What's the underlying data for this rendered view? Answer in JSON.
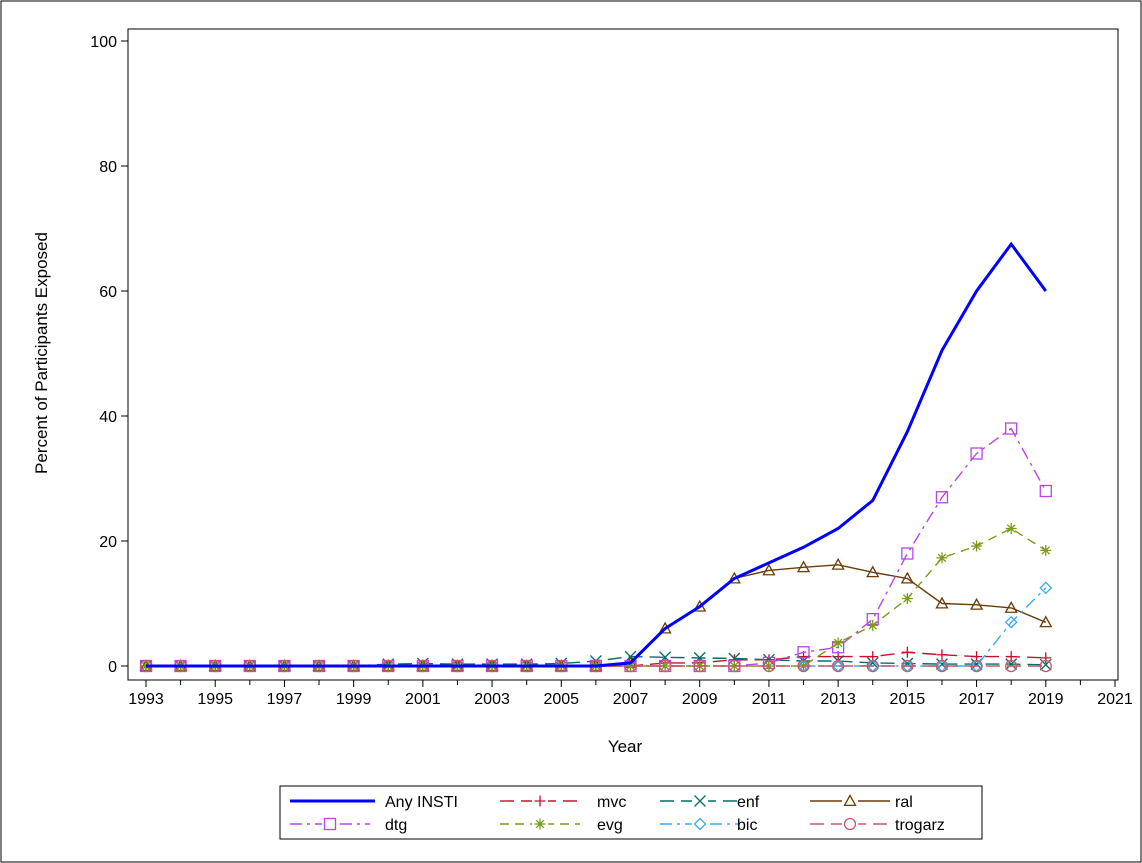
{
  "chart_data": {
    "type": "line",
    "xlabel": "Year",
    "ylabel": "Percent of Participants Exposed",
    "xlim": [
      1993,
      2021
    ],
    "ylim": [
      0,
      100
    ],
    "x_ticks": [
      1993,
      1995,
      1997,
      1999,
      2001,
      2003,
      2005,
      2007,
      2009,
      2011,
      2013,
      2015,
      2017,
      2019,
      2021
    ],
    "y_ticks": [
      0,
      20,
      40,
      60,
      80,
      100
    ],
    "x": [
      1993,
      1994,
      1995,
      1996,
      1997,
      1998,
      1999,
      2000,
      2001,
      2002,
      2003,
      2004,
      2005,
      2006,
      2007,
      2008,
      2009,
      2010,
      2011,
      2012,
      2013,
      2014,
      2015,
      2016,
      2017,
      2018,
      2019
    ],
    "grid": false,
    "legend_position": "bottom",
    "series": [
      {
        "name": "Any INSTI",
        "color": "#0000ff",
        "dash": "solid",
        "marker": "none",
        "values": [
          0,
          0,
          0,
          0,
          0,
          0,
          0,
          0,
          0,
          0,
          0,
          0,
          0,
          0,
          0.5,
          6,
          9.5,
          14,
          16.5,
          19,
          22,
          26.5,
          37.5,
          50.5,
          60,
          67.5,
          60
        ]
      },
      {
        "name": "mvc",
        "color": "#c8102e",
        "dash": "long-dash",
        "marker": "plus",
        "values": [
          0,
          0,
          0,
          0,
          0,
          0,
          0,
          0,
          0,
          0,
          0,
          0,
          0,
          0,
          0,
          0.5,
          0.5,
          1,
          1,
          1.5,
          1.5,
          1.5,
          2.2,
          1.8,
          1.5,
          1.5,
          1.3
        ]
      },
      {
        "name": "enf",
        "color": "#00706b",
        "dash": "long-dash",
        "marker": "x",
        "values": [
          0,
          0,
          0,
          0,
          0,
          0,
          0,
          0.3,
          0.4,
          0.3,
          0.3,
          0.3,
          0.4,
          0.8,
          1.5,
          1.4,
          1.3,
          1.2,
          1,
          0.8,
          0.8,
          0.5,
          0.4,
          0.3,
          0.3,
          0.3,
          0.2
        ]
      },
      {
        "name": "ral",
        "color": "#6b3d0a",
        "dash": "solid",
        "marker": "triangle",
        "values": [
          0,
          0,
          0,
          0,
          0,
          0,
          0,
          0,
          0,
          0,
          0,
          0,
          0,
          0,
          0.5,
          6,
          9.5,
          14,
          15.3,
          15.8,
          16.2,
          15,
          14,
          10,
          9.8,
          9.3,
          7
        ]
      },
      {
        "name": "dtg",
        "color": "#b845e8",
        "dash": "dash-dot",
        "marker": "square",
        "values": [
          0,
          0,
          0,
          0,
          0,
          0,
          0,
          0,
          0,
          0,
          0,
          0,
          0,
          0,
          0,
          0,
          0,
          0,
          0.5,
          2.2,
          3,
          7.5,
          18,
          27,
          34,
          38,
          28
        ]
      },
      {
        "name": "evg",
        "color": "#7a9a1a",
        "dash": "dash",
        "marker": "star",
        "values": [
          0,
          0,
          0,
          0,
          0,
          0,
          0,
          0,
          0,
          0,
          0,
          0,
          0,
          0,
          0,
          0,
          0,
          0,
          0,
          0,
          3.7,
          6.5,
          10.8,
          17.3,
          19.2,
          22,
          18.5
        ]
      },
      {
        "name": "bic",
        "color": "#3aaaf0",
        "dash": "dash-dot",
        "marker": "diamond",
        "values": [
          null,
          null,
          null,
          null,
          null,
          null,
          null,
          null,
          null,
          null,
          null,
          null,
          null,
          null,
          null,
          null,
          null,
          null,
          null,
          0,
          0,
          0,
          0,
          0,
          0,
          7,
          12.5
        ]
      },
      {
        "name": "trogarz",
        "color": "#c9586b",
        "dash": "long-dash",
        "marker": "circle",
        "values": [
          0,
          0,
          0,
          0,
          0,
          0,
          0,
          0,
          0,
          0,
          0,
          0,
          0,
          0,
          0,
          0,
          0,
          0,
          0,
          0,
          0,
          0,
          0,
          0,
          0,
          0,
          0
        ]
      }
    ]
  }
}
